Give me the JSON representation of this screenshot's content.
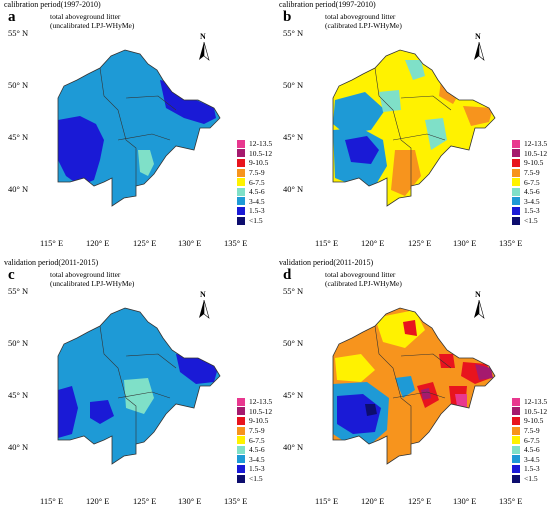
{
  "panels": [
    {
      "id": "a",
      "period": "calibration period(1997-2010)",
      "title_line1": "total aboveground litter",
      "title_line2": "(uncalibrated LPJ-WHyMe)"
    },
    {
      "id": "b",
      "period": "calibration period(1997-2010)",
      "title_line1": "total aboveground litter",
      "title_line2": "(calibrated LPJ-WHyMe)"
    },
    {
      "id": "c",
      "period": "validation period(2011-2015)",
      "title_line1": "total aboveground litter",
      "title_line2": "(uncalibrated LPJ-WHyMe)"
    },
    {
      "id": "d",
      "period": "validation period(2011-2015)",
      "title_line1": "total aboveground litter",
      "title_line2": "(calibrated LPJ-WHyMe)"
    }
  ],
  "latitude_labels": [
    "55° N",
    "50° N",
    "45° N",
    "40° N"
  ],
  "longitude_labels": [
    "115° E",
    "120° E",
    "125° E",
    "130° E",
    "135° E"
  ],
  "north_arrow_label": "N",
  "legend": [
    {
      "label": "12-13.5",
      "color": "#e8388f"
    },
    {
      "label": "10.5-12",
      "color": "#a51a6e"
    },
    {
      "label": "9-10.5",
      "color": "#e8141e"
    },
    {
      "label": "7.5-9",
      "color": "#f7941d"
    },
    {
      "label": "6-7.5",
      "color": "#fff200"
    },
    {
      "label": "4.5-6",
      "color": "#7fe0c8"
    },
    {
      "label": "3-4.5",
      "color": "#1e9ad6"
    },
    {
      "label": "1.5-3",
      "color": "#1a1ad6"
    },
    {
      "label": "<1.5",
      "color": "#0d0d6e"
    }
  ]
}
